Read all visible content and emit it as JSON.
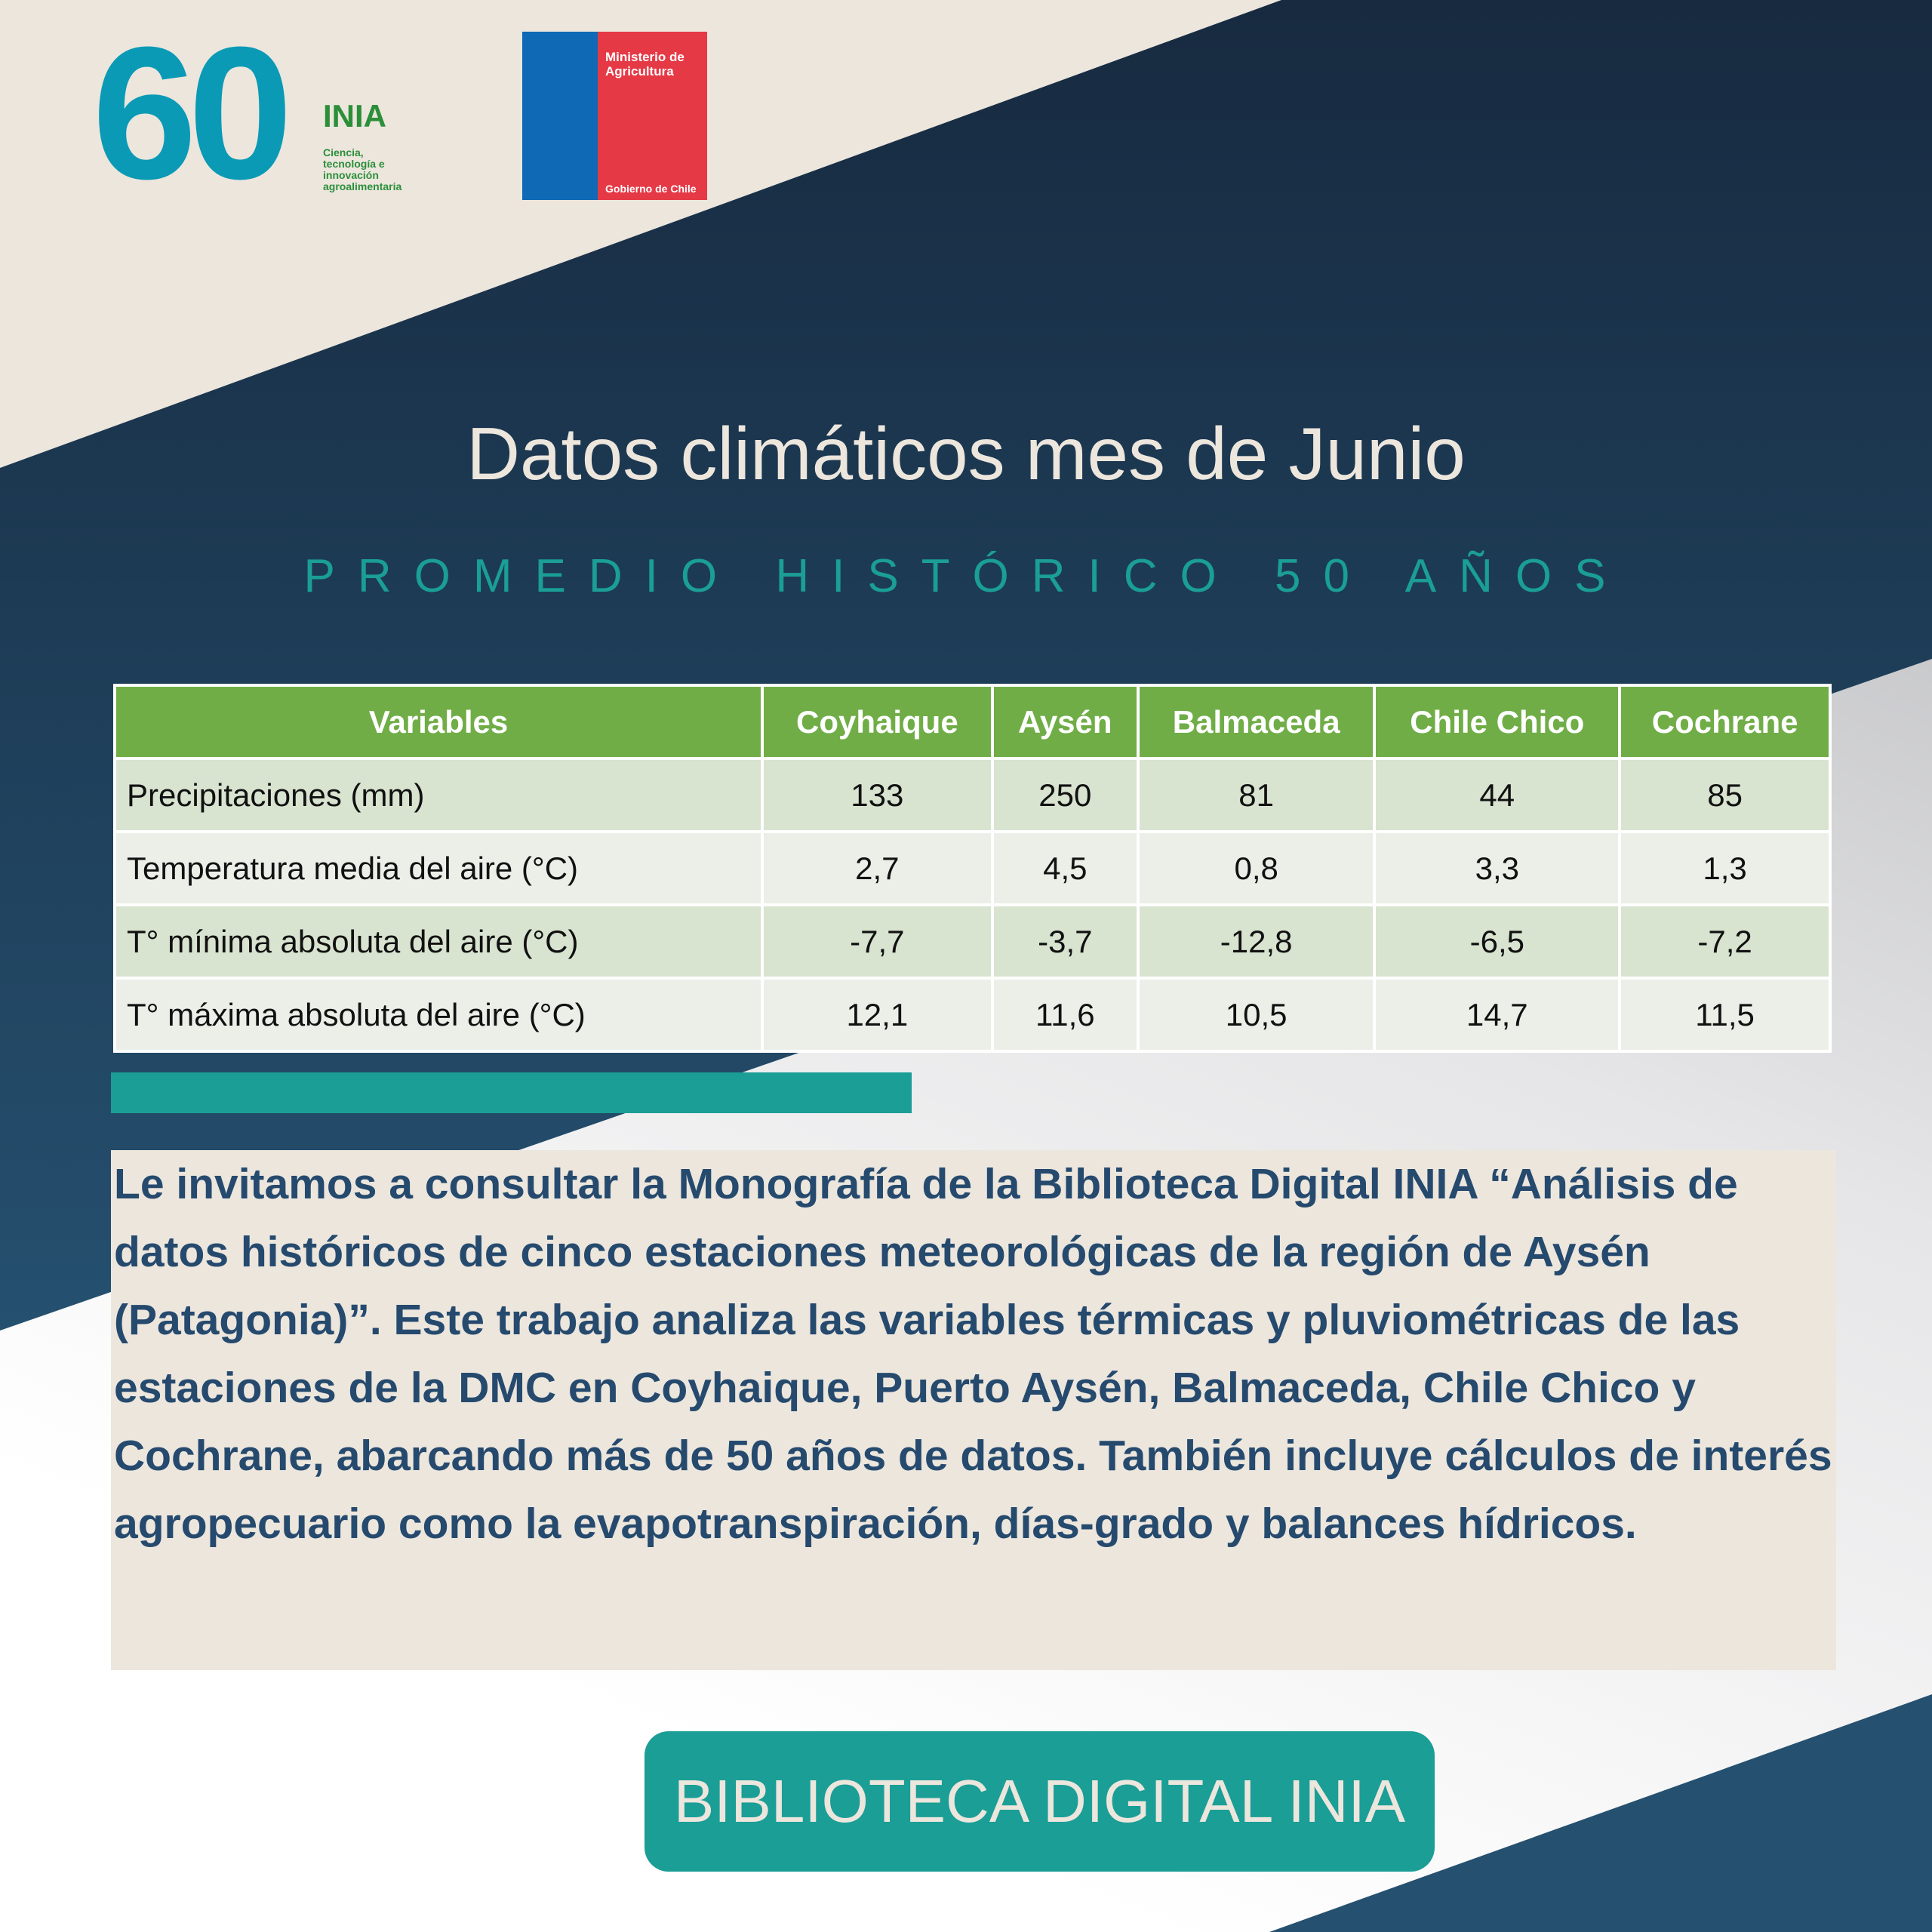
{
  "logos": {
    "anniversary": "60",
    "inia": "INIA",
    "tagline": [
      "Ciencia,",
      "tecnología e",
      "innovación",
      "agroalimentaria"
    ],
    "ministry": [
      "Ministerio de",
      "Agricultura"
    ],
    "government": "Gobierno de Chile"
  },
  "header": {
    "title": "Datos climáticos mes de Junio",
    "subtitle": "PROMEDIO HISTÓRICO 50 AÑOS"
  },
  "table": {
    "columns": [
      "Variables",
      "Coyhaique",
      "Aysén",
      "Balmaceda",
      "Chile Chico",
      "Cochrane"
    ],
    "rows": [
      [
        "Precipitaciones (mm)",
        "133",
        "250",
        "81",
        "44",
        "85"
      ],
      [
        "Temperatura media del aire (°C)",
        "2,7",
        "4,5",
        "0,8",
        "3,3",
        "1,3"
      ],
      [
        "T° mínima absoluta del aire (°C)",
        "-7,7",
        "-3,7",
        "-12,8",
        "-6,5",
        "-7,2"
      ],
      [
        "T° máxima absoluta del aire (°C)",
        "12,1",
        "11,6",
        "10,5",
        "14,7",
        "11,5"
      ]
    ]
  },
  "body": {
    "text": "Le invitamos a consultar la Monografía de la Biblioteca Digital INIA “Análisis de datos históricos de cinco estaciones meteorológicas de la región de Aysén (Patagonia)”. Este trabajo analiza las variables térmicas y pluviométricas de las estaciones de la DMC en Coyhaique, Puerto Aysén, Balmaceda, Chile Chico y Cochrane, abarcando más de 50 años de datos. También incluye cálculos de interés agropecuario como la evapotranspiración, días-grado y balances hídricos."
  },
  "button": {
    "label": "BIBLIOTECA DIGITAL INIA"
  }
}
